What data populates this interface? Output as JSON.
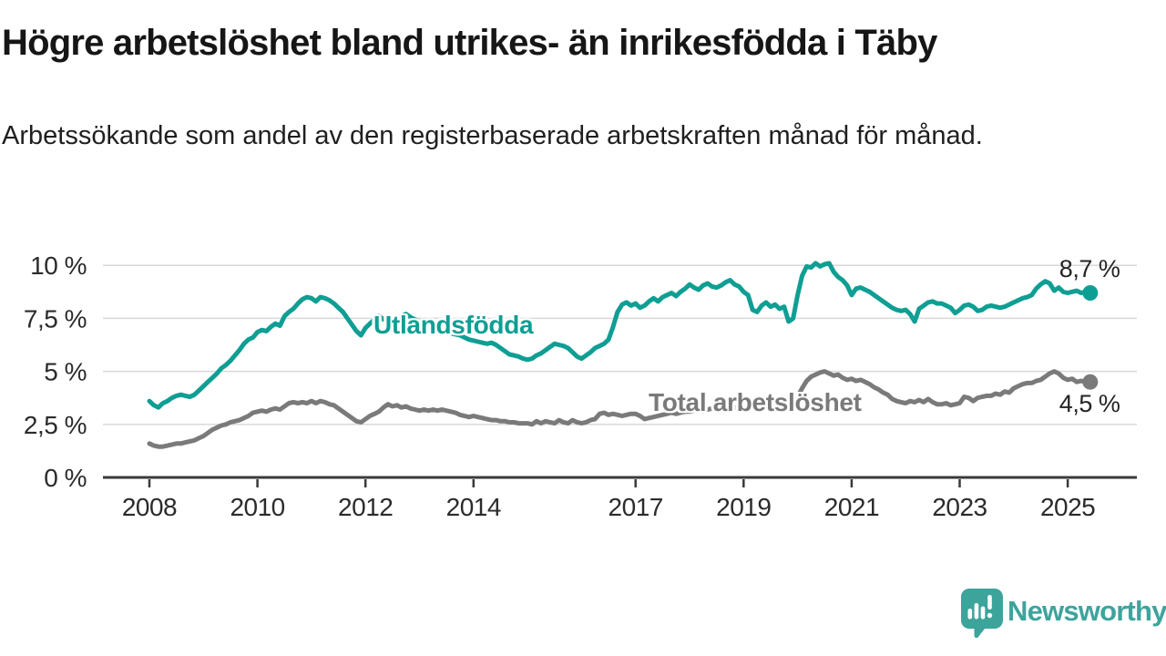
{
  "page": {
    "title": "Högre arbetslöshet bland utrikes- än inrikesfödda i Täby",
    "subtitle": "Arbetssökande som andel av den registerbaserade arbetskraften månad för månad.",
    "background_color": "#ffffff"
  },
  "chart_data": {
    "type": "line",
    "x_unit": "month",
    "x_start": "2008-01",
    "x_end": "2025-06",
    "x_ticks": [
      2008,
      2010,
      2012,
      2014,
      2017,
      2019,
      2021,
      2023,
      2025
    ],
    "y_ticks": [
      {
        "value": 0,
        "label": "0 %"
      },
      {
        "value": 2.5,
        "label": "2,5 %"
      },
      {
        "value": 5,
        "label": "5 %"
      },
      {
        "value": 7.5,
        "label": "7,5 %"
      },
      {
        "value": 10,
        "label": "10 %"
      }
    ],
    "ylim": [
      0,
      10.5
    ],
    "grid": true,
    "gridline_color": "#d9d9d9",
    "axis_color": "#3a3a3a",
    "axis_text_color": "#2b2b2b",
    "legend_position": "inline-labels",
    "series": [
      {
        "name": "Utlandsfödda",
        "color": "#0f9e93",
        "end_label": "8,7 %",
        "last_value": 8.7,
        "values": [
          3.6,
          3.4,
          3.3,
          3.5,
          3.6,
          3.75,
          3.85,
          3.9,
          3.85,
          3.8,
          3.9,
          4.1,
          4.3,
          4.5,
          4.7,
          4.9,
          5.15,
          5.3,
          5.5,
          5.75,
          6.0,
          6.3,
          6.5,
          6.6,
          6.85,
          6.95,
          6.9,
          7.1,
          7.25,
          7.15,
          7.6,
          7.8,
          7.95,
          8.2,
          8.4,
          8.5,
          8.45,
          8.3,
          8.5,
          8.45,
          8.35,
          8.2,
          8.0,
          7.8,
          7.5,
          7.2,
          6.9,
          6.7,
          7.05,
          7.25,
          7.45,
          7.6,
          7.45,
          7.5,
          7.35,
          7.45,
          7.6,
          7.7,
          7.55,
          7.45,
          7.35,
          7.25,
          7.15,
          7.05,
          7.0,
          6.9,
          6.85,
          6.8,
          6.75,
          6.7,
          6.6,
          6.5,
          6.45,
          6.4,
          6.35,
          6.3,
          6.35,
          6.25,
          6.1,
          5.95,
          5.8,
          5.75,
          5.7,
          5.6,
          5.55,
          5.6,
          5.75,
          5.85,
          6.0,
          6.15,
          6.3,
          6.25,
          6.2,
          6.1,
          5.9,
          5.7,
          5.6,
          5.75,
          5.9,
          6.1,
          6.2,
          6.3,
          6.5,
          7.1,
          7.8,
          8.15,
          8.25,
          8.1,
          8.2,
          8.0,
          8.1,
          8.3,
          8.45,
          8.3,
          8.5,
          8.6,
          8.7,
          8.55,
          8.75,
          8.9,
          9.1,
          8.95,
          8.85,
          9.05,
          9.15,
          9.0,
          8.95,
          9.05,
          9.2,
          9.3,
          9.1,
          9.0,
          8.75,
          8.6,
          7.9,
          7.8,
          8.1,
          8.25,
          8.05,
          8.15,
          7.95,
          8.05,
          7.35,
          7.5,
          8.6,
          9.5,
          9.95,
          9.9,
          10.1,
          9.95,
          10.05,
          10.1,
          9.7,
          9.45,
          9.3,
          9.05,
          8.6,
          8.9,
          8.95,
          8.85,
          8.75,
          8.6,
          8.45,
          8.3,
          8.15,
          8.0,
          7.9,
          7.85,
          7.9,
          7.7,
          7.35,
          7.95,
          8.1,
          8.25,
          8.3,
          8.2,
          8.2,
          8.1,
          8.0,
          7.75,
          7.9,
          8.1,
          8.15,
          8.05,
          7.85,
          7.9,
          8.05,
          8.1,
          8.05,
          8.0,
          8.05,
          8.15,
          8.25,
          8.35,
          8.45,
          8.5,
          8.6,
          8.9,
          9.1,
          9.25,
          9.15,
          8.8,
          8.95,
          8.75,
          8.7,
          8.75,
          8.8,
          8.7,
          8.75,
          8.7
        ]
      },
      {
        "name": "Total arbetslöshet",
        "color": "#7a7a7a",
        "end_label": "4,5 %",
        "last_value": 4.5,
        "values": [
          1.6,
          1.5,
          1.45,
          1.45,
          1.5,
          1.55,
          1.6,
          1.6,
          1.65,
          1.7,
          1.75,
          1.85,
          1.95,
          2.1,
          2.25,
          2.35,
          2.45,
          2.5,
          2.6,
          2.65,
          2.7,
          2.8,
          2.9,
          3.05,
          3.1,
          3.15,
          3.1,
          3.2,
          3.25,
          3.2,
          3.35,
          3.5,
          3.55,
          3.5,
          3.55,
          3.5,
          3.6,
          3.5,
          3.6,
          3.55,
          3.45,
          3.4,
          3.25,
          3.1,
          2.95,
          2.8,
          2.65,
          2.6,
          2.75,
          2.9,
          3.0,
          3.1,
          3.3,
          3.45,
          3.35,
          3.4,
          3.3,
          3.35,
          3.25,
          3.2,
          3.15,
          3.2,
          3.15,
          3.2,
          3.15,
          3.2,
          3.15,
          3.1,
          3.05,
          2.95,
          2.9,
          2.85,
          2.9,
          2.85,
          2.8,
          2.75,
          2.7,
          2.7,
          2.65,
          2.65,
          2.6,
          2.6,
          2.55,
          2.55,
          2.55,
          2.5,
          2.65,
          2.55,
          2.65,
          2.6,
          2.55,
          2.7,
          2.6,
          2.55,
          2.7,
          2.6,
          2.55,
          2.6,
          2.7,
          2.75,
          3.0,
          3.05,
          2.95,
          3.0,
          2.95,
          2.9,
          2.95,
          3.0,
          3.0,
          2.9,
          2.75,
          2.8,
          2.85,
          2.9,
          2.95,
          3.0,
          3.05,
          3.0,
          3.05,
          3.1,
          3.1,
          3.15,
          3.2,
          3.15,
          3.2,
          3.25,
          3.2,
          3.25,
          3.3,
          3.25,
          3.3,
          3.35,
          3.3,
          3.35,
          3.4,
          3.35,
          3.4,
          3.45,
          3.4,
          3.45,
          3.5,
          3.45,
          3.4,
          3.55,
          3.8,
          4.2,
          4.55,
          4.75,
          4.85,
          4.95,
          5.0,
          4.9,
          4.8,
          4.85,
          4.7,
          4.6,
          4.65,
          4.55,
          4.6,
          4.5,
          4.4,
          4.25,
          4.15,
          4.0,
          3.9,
          3.7,
          3.6,
          3.55,
          3.5,
          3.6,
          3.55,
          3.65,
          3.55,
          3.7,
          3.55,
          3.45,
          3.45,
          3.5,
          3.4,
          3.45,
          3.5,
          3.8,
          3.75,
          3.6,
          3.75,
          3.8,
          3.85,
          3.85,
          3.95,
          3.9,
          4.05,
          4.0,
          4.2,
          4.3,
          4.4,
          4.45,
          4.45,
          4.55,
          4.6,
          4.75,
          4.9,
          5.0,
          4.9,
          4.7,
          4.6,
          4.65,
          4.5,
          4.55,
          4.5,
          4.5
        ]
      }
    ]
  },
  "branding": {
    "logo_text": "Newsworthy",
    "logo_color": "#3da49c",
    "logo_icon": "speech-bubble-bar-chart"
  }
}
